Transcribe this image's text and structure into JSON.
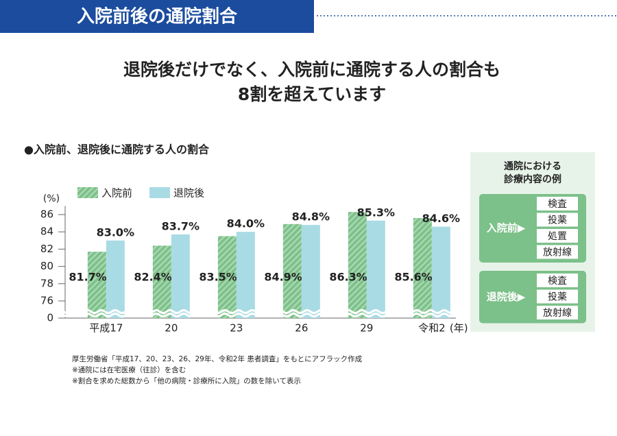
{
  "header": {
    "title": "入院前後の通院割合"
  },
  "headline": [
    "退院後だけでなく、入院前に通院する人の割合も",
    "8割を超えています"
  ],
  "chart_data": {
    "type": "bar",
    "title": "●入院前、退院後に通院する人の割合",
    "y_label": "(%)",
    "x_label": "(年)",
    "categories": [
      "平成17",
      "20",
      "23",
      "26",
      "29",
      "令和2"
    ],
    "series": [
      {
        "name": "入院前",
        "color": "#7cc08a",
        "pattern": "hatch",
        "values": [
          81.7,
          82.4,
          83.5,
          84.9,
          86.3,
          85.6
        ],
        "value_labels": [
          "81.7%",
          "82.4%",
          "83.5%",
          "84.9%",
          "86.3%",
          "85.6%"
        ]
      },
      {
        "name": "退院後",
        "color": "#a9dbe4",
        "values": [
          83.0,
          83.7,
          84.0,
          84.8,
          85.3,
          84.6
        ],
        "value_labels": [
          "83.0%",
          "83.7%",
          "84.0%",
          "84.8%",
          "85.3%",
          "84.6%"
        ]
      }
    ],
    "ylim": [
      0,
      87
    ],
    "axis_break": [
      0,
      75
    ],
    "yticks": [
      0,
      76,
      78,
      80,
      82,
      84,
      86
    ],
    "legend": "top-left"
  },
  "side_panel": {
    "title": [
      "通院における",
      "診療内容の例"
    ],
    "groups": [
      {
        "label": "入院前▶",
        "items": [
          "検査",
          "投薬",
          "処置",
          "放射線"
        ]
      },
      {
        "label": "退院後▶",
        "items": [
          "検査",
          "投薬",
          "放射線"
        ]
      }
    ]
  },
  "notes": [
    "厚生労働省「平成17、20、23、26、29年、令和2年 患者調査」をもとにアフラック作成",
    "※通院には在宅医療（往診）を含む",
    "※割合を求めた総数から「他の病院・診療所に入院」の数を除いて表示"
  ]
}
